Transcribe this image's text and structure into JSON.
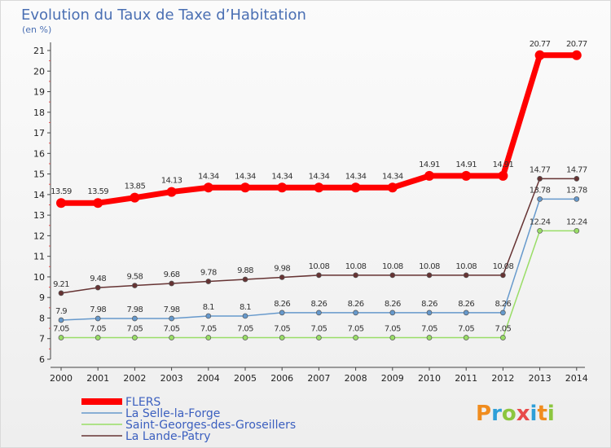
{
  "chart_data": {
    "type": "line",
    "title": "Evolution du Taux de Taxe d’Habitation",
    "subtitle": "(en %)",
    "xlabel": "",
    "ylabel": "",
    "x": [
      "2000",
      "2001",
      "2002",
      "2003",
      "2004",
      "2005",
      "2006",
      "2007",
      "2008",
      "2009",
      "2010",
      "2011",
      "2012",
      "2013",
      "2014"
    ],
    "ylim": [
      6,
      21
    ],
    "yticks": [
      6,
      7,
      8,
      9,
      10,
      11,
      12,
      13,
      14,
      15,
      16,
      17,
      18,
      19,
      20,
      21
    ],
    "grid": false,
    "legend_position": "bottom-left",
    "series": [
      {
        "name": "FLERS",
        "color": "#ff0000",
        "values": [
          13.59,
          13.59,
          13.85,
          14.13,
          14.34,
          14.34,
          14.34,
          14.34,
          14.34,
          14.34,
          14.91,
          14.91,
          14.91,
          20.77,
          20.77
        ],
        "labels": [
          "13.59",
          "13.59",
          "13.85",
          "14.13",
          "14.34",
          "14.34",
          "14.34",
          "14.34",
          "14.34",
          "14.34",
          "14.91",
          "14.91",
          "14.91",
          "20.77",
          "20.77"
        ]
      },
      {
        "name": "La Selle-la-Forge",
        "color": "#6699cc",
        "values": [
          7.9,
          7.98,
          7.98,
          7.98,
          8.1,
          8.1,
          8.26,
          8.26,
          8.26,
          8.26,
          8.26,
          8.26,
          8.26,
          13.78,
          13.78
        ],
        "labels": [
          "7.9",
          "7.98",
          "7.98",
          "7.98",
          "8.1",
          "8.1",
          "8.26",
          "8.26",
          "8.26",
          "8.26",
          "8.26",
          "8.26",
          "8.26",
          "13.78",
          "13.78"
        ]
      },
      {
        "name": "Saint-Georges-des-Groseillers",
        "color": "#99dd66",
        "values": [
          7.05,
          7.05,
          7.05,
          7.05,
          7.05,
          7.05,
          7.05,
          7.05,
          7.05,
          7.05,
          7.05,
          7.05,
          7.05,
          12.24,
          12.24
        ],
        "labels": [
          "7.05",
          "7.05",
          "7.05",
          "7.05",
          "7.05",
          "7.05",
          "7.05",
          "7.05",
          "7.05",
          "7.05",
          "7.05",
          "7.05",
          "7.05",
          "12.24",
          "12.24"
        ]
      },
      {
        "name": "La Lande-Patry",
        "color": "#663333",
        "values": [
          9.21,
          9.48,
          9.58,
          9.68,
          9.78,
          9.88,
          9.98,
          10.08,
          10.08,
          10.08,
          10.08,
          10.08,
          10.08,
          14.77,
          14.77
        ],
        "labels": [
          "9.21",
          "9.48",
          "9.58",
          "9.68",
          "9.78",
          "9.88",
          "9.98",
          "10.08",
          "10.08",
          "10.08",
          "10.08",
          "10.08",
          "10.08",
          "14.77",
          "14.77"
        ]
      }
    ]
  },
  "logo": {
    "text": "Proxiti",
    "colors": [
      "#f08c1e",
      "#2e9fd8",
      "#8cc63f",
      "#e84a4a"
    ]
  }
}
